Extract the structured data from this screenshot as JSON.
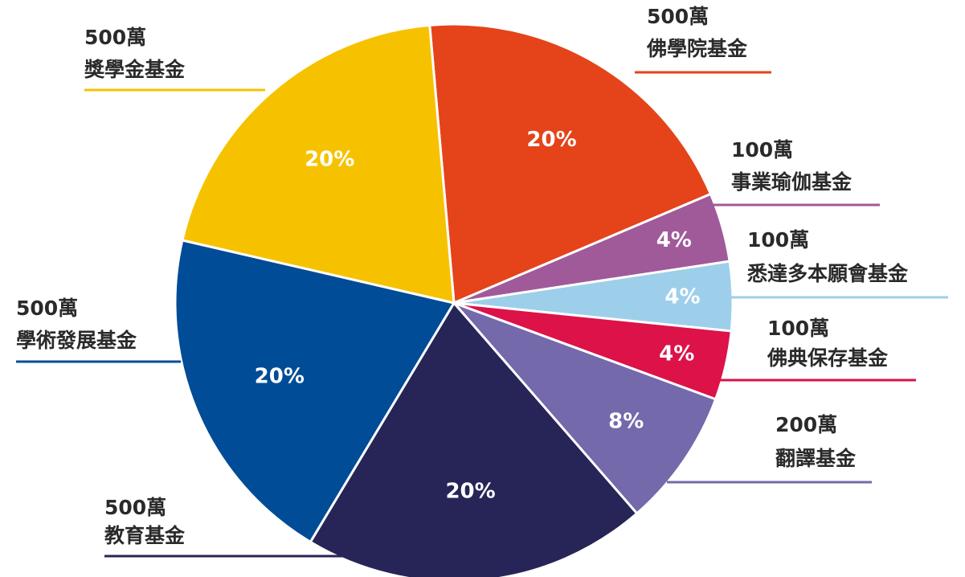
{
  "chart_data": {
    "type": "pie",
    "categories": [
      "佛學院基金",
      "事業瑜伽基金",
      "悉達多本願會基金",
      "佛典保存基金",
      "翻譯基金",
      "教育基金",
      "學術發展基金",
      "獎學金基金"
    ],
    "amount_labels": [
      "500萬",
      "100萬",
      "100萬",
      "100萬",
      "200萬",
      "500萬",
      "500萬",
      "500萬"
    ],
    "values": [
      20,
      4,
      4,
      4,
      8,
      20,
      20,
      20
    ],
    "value_labels": [
      "20%",
      "4%",
      "4%",
      "4%",
      "8%",
      "20%",
      "20%",
      "20%"
    ],
    "colors": [
      "#e5431a",
      "#a05a9a",
      "#9dcfea",
      "#dc1249",
      "#7469ab",
      "#272557",
      "#004c97",
      "#f6c200"
    ]
  }
}
